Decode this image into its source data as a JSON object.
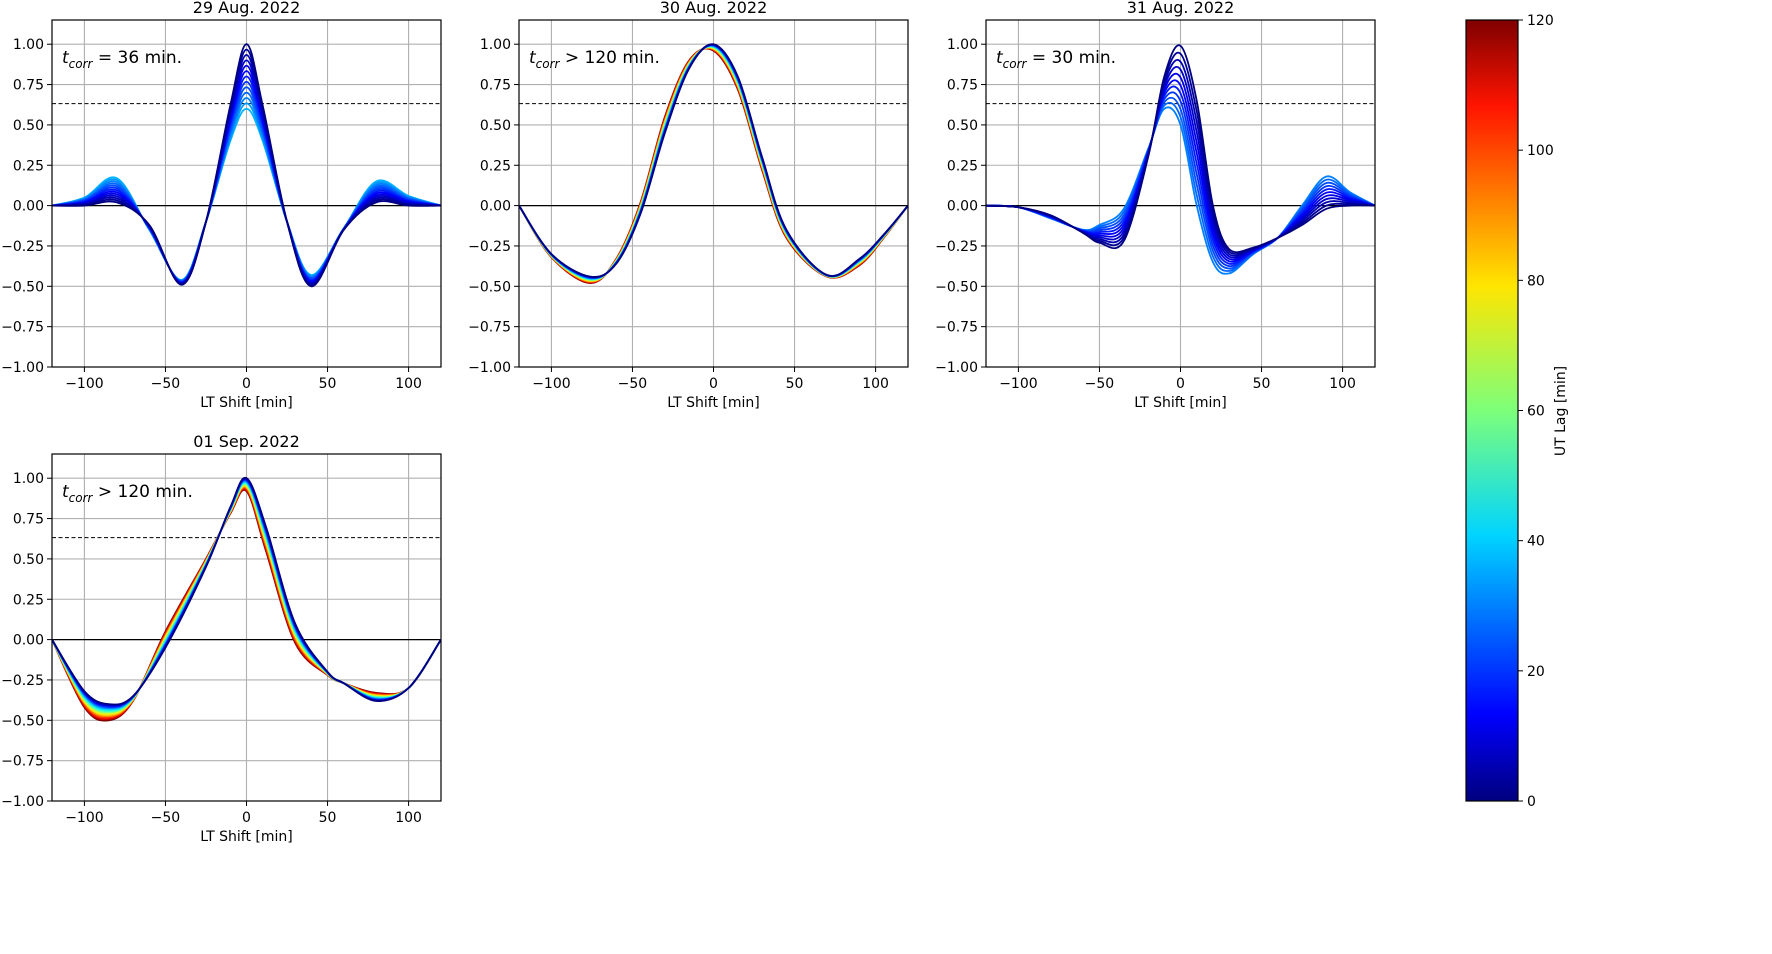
{
  "colorbar": {
    "label": "UT Lag [min]",
    "range": [
      0,
      120
    ],
    "ticks": [
      0,
      20,
      40,
      60,
      80,
      100,
      120
    ],
    "colormap": "jet"
  },
  "chart_data": [
    {
      "type": "line",
      "title": "29 Aug. 2022",
      "xlabel": "LT Shift [min]",
      "ylabel": "",
      "xlim": [
        -120,
        120
      ],
      "ylim": [
        -1.0,
        1.15
      ],
      "xticks": [
        -100,
        -50,
        0,
        50,
        100
      ],
      "yticks": [
        -1.0,
        -0.75,
        -0.5,
        -0.25,
        0.0,
        0.25,
        0.5,
        0.75,
        1.0
      ],
      "grid": true,
      "threshold_line": 0.632,
      "annotation": {
        "var": "t",
        "sub": "corr",
        "rel": "=",
        "text": "36 min."
      },
      "series_color_by": "UT Lag [min]",
      "lags": [
        0,
        3,
        6,
        9,
        12,
        15,
        18,
        21,
        24,
        27,
        30,
        33,
        36
      ],
      "curve_x": [
        -120,
        -100,
        -80,
        -60,
        -40,
        -25,
        -10,
        0,
        10,
        25,
        40,
        60,
        80,
        100,
        120
      ],
      "curve_first": [
        0.0,
        0.0,
        0.02,
        -0.12,
        -0.49,
        -0.1,
        0.62,
        1.0,
        0.62,
        -0.1,
        -0.5,
        -0.15,
        0.02,
        0.0,
        0.0
      ],
      "curve_last": [
        0.0,
        0.05,
        0.17,
        -0.15,
        -0.46,
        -0.1,
        0.4,
        0.6,
        0.4,
        -0.1,
        -0.43,
        -0.14,
        0.15,
        0.06,
        0.0
      ]
    },
    {
      "type": "line",
      "title": "30 Aug. 2022",
      "xlabel": "LT Shift [min]",
      "ylabel": "",
      "xlim": [
        -120,
        120
      ],
      "ylim": [
        -1.0,
        1.15
      ],
      "xticks": [
        -100,
        -50,
        0,
        50,
        100
      ],
      "yticks": [
        -1.0,
        -0.75,
        -0.5,
        -0.25,
        0.0,
        0.25,
        0.5,
        0.75,
        1.0
      ],
      "grid": true,
      "threshold_line": 0.632,
      "annotation": {
        "var": "t",
        "sub": "corr",
        "rel": ">",
        "text": "120 min."
      },
      "series_color_by": "UT Lag [min]",
      "lags": [
        0,
        10,
        20,
        30,
        40,
        50,
        60,
        70,
        80,
        90,
        100,
        110,
        120
      ],
      "curve_x": [
        -120,
        -100,
        -76,
        -60,
        -45,
        -30,
        -15,
        0,
        15,
        30,
        45,
        70,
        90,
        105,
        120
      ],
      "curve_first": [
        0.0,
        -0.3,
        -0.44,
        -0.36,
        -0.05,
        0.45,
        0.85,
        1.0,
        0.8,
        0.3,
        -0.15,
        -0.43,
        -0.33,
        -0.18,
        0.0
      ],
      "curve_last": [
        0.0,
        -0.32,
        -0.48,
        -0.33,
        0.02,
        0.55,
        0.9,
        0.96,
        0.72,
        0.22,
        -0.2,
        -0.44,
        -0.37,
        -0.2,
        0.0
      ]
    },
    {
      "type": "line",
      "title": "31 Aug. 2022",
      "xlabel": "LT Shift [min]",
      "ylabel": "",
      "xlim": [
        -120,
        120
      ],
      "ylim": [
        -1.0,
        1.15
      ],
      "xticks": [
        -100,
        -50,
        0,
        50,
        100
      ],
      "yticks": [
        -1.0,
        -0.75,
        -0.5,
        -0.25,
        0.0,
        0.25,
        0.5,
        0.75,
        1.0
      ],
      "grid": true,
      "threshold_line": 0.632,
      "annotation": {
        "var": "t",
        "sub": "corr",
        "rel": "=",
        "text": "30 min."
      },
      "series_color_by": "UT Lag [min]",
      "lags": [
        0,
        3,
        6,
        9,
        12,
        15,
        18,
        21,
        24,
        27,
        30
      ],
      "curve_x": [
        -120,
        -100,
        -80,
        -60,
        -50,
        -35,
        -20,
        -10,
        0,
        10,
        20,
        30,
        45,
        60,
        75,
        90,
        105,
        120
      ],
      "curve_first": [
        0.0,
        -0.01,
        -0.06,
        -0.17,
        -0.23,
        -0.22,
        0.3,
        0.8,
        0.99,
        0.65,
        0.0,
        -0.27,
        -0.26,
        -0.2,
        -0.12,
        -0.02,
        0.0,
        0.0
      ],
      "curve_last": [
        0.0,
        -0.01,
        -0.08,
        -0.15,
        -0.12,
        -0.02,
        0.35,
        0.6,
        0.5,
        0.0,
        -0.35,
        -0.42,
        -0.3,
        -0.2,
        0.0,
        0.18,
        0.08,
        0.0
      ]
    },
    {
      "type": "line",
      "title": "01 Sep. 2022",
      "xlabel": "LT Shift [min]",
      "ylabel": "",
      "xlim": [
        -120,
        120
      ],
      "ylim": [
        -1.0,
        1.15
      ],
      "xticks": [
        -100,
        -50,
        0,
        50,
        100
      ],
      "yticks": [
        -1.0,
        -0.75,
        -0.5,
        -0.25,
        0.0,
        0.25,
        0.5,
        0.75,
        1.0
      ],
      "grid": true,
      "threshold_line": 0.632,
      "annotation": {
        "var": "t",
        "sub": "corr",
        "rel": ">",
        "text": "120 min."
      },
      "series_color_by": "UT Lag [min]",
      "lags": [
        0,
        10,
        20,
        30,
        40,
        50,
        60,
        70,
        80,
        90,
        100,
        110,
        120
      ],
      "curve_x": [
        -120,
        -100,
        -85,
        -70,
        -50,
        -25,
        -10,
        0,
        12,
        30,
        50,
        60,
        80,
        100,
        120
      ],
      "curve_first": [
        0.0,
        -0.32,
        -0.4,
        -0.35,
        -0.05,
        0.45,
        0.82,
        1.0,
        0.7,
        0.1,
        -0.2,
        -0.27,
        -0.38,
        -0.3,
        0.0
      ],
      "curve_last": [
        0.0,
        -0.42,
        -0.5,
        -0.38,
        0.05,
        0.5,
        0.78,
        0.92,
        0.55,
        -0.02,
        -0.22,
        -0.27,
        -0.33,
        -0.3,
        0.0
      ]
    }
  ]
}
